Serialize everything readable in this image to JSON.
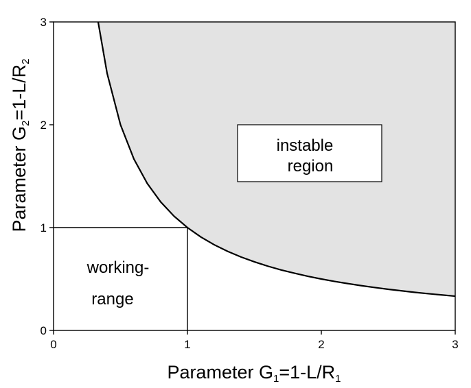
{
  "chart_data": {
    "type": "area",
    "xlabel": {
      "prefix": "Parameter G",
      "sub1": "1",
      "mid": "=1-L/R",
      "sub2": "1"
    },
    "ylabel": {
      "prefix": "Parameter G",
      "sub1": "2",
      "mid": "=1-L/R",
      "sub2": "2"
    },
    "xlim": [
      0,
      3
    ],
    "ylim": [
      0,
      3
    ],
    "xticks": [
      "0",
      "1",
      "2",
      "3"
    ],
    "yticks": [
      "0",
      "1",
      "2",
      "3"
    ],
    "grid": false,
    "series": [
      {
        "x": [
          0.333,
          0.4,
          0.5,
          0.6,
          0.7,
          0.8,
          0.9,
          1.0,
          1.1,
          1.2,
          1.3,
          1.4,
          1.5,
          1.6,
          1.7,
          1.8,
          1.9,
          2.0,
          2.1,
          2.2,
          2.3,
          2.4,
          2.5,
          2.6,
          2.7,
          2.8,
          2.9,
          3.0
        ],
        "y": [
          3.0,
          2.5,
          2.0,
          1.667,
          1.429,
          1.25,
          1.111,
          1.0,
          0.909,
          0.833,
          0.769,
          0.714,
          0.667,
          0.625,
          0.588,
          0.556,
          0.526,
          0.5,
          0.476,
          0.455,
          0.435,
          0.417,
          0.4,
          0.385,
          0.37,
          0.357,
          0.345,
          0.333
        ],
        "color": "#000000",
        "fill_above": "#e3e3e3"
      }
    ],
    "annotations": [
      {
        "lines": [
          "instable",
          "region"
        ],
        "boxed": true
      },
      {
        "lines": [
          "working-",
          "range"
        ],
        "boxed": false
      }
    ],
    "reference_lines": [
      {
        "type": "vertical",
        "x": 1,
        "y_to": 1
      },
      {
        "type": "horizontal",
        "y": 1,
        "x_to": 1
      }
    ]
  }
}
